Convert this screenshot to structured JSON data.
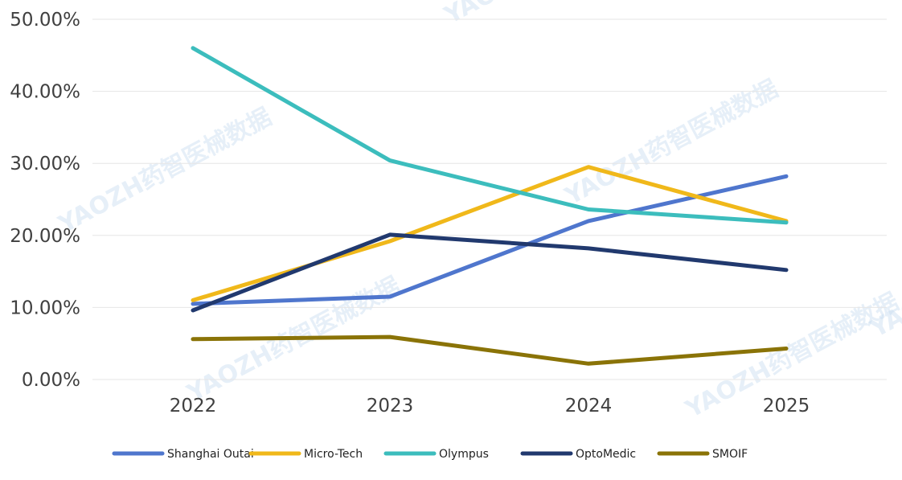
{
  "chart_data": {
    "type": "line",
    "title": "",
    "xlabel": "",
    "ylabel": "",
    "categories": [
      "2022",
      "2023",
      "2024",
      "2025"
    ],
    "ylim": [
      0,
      50
    ],
    "yticks": [
      0,
      10,
      20,
      30,
      40,
      50
    ],
    "ytick_labels": [
      "0.00%",
      "10.00%",
      "20.00%",
      "30.00%",
      "40.00%",
      "50.00%"
    ],
    "grid": true,
    "legend_position": "bottom",
    "series": [
      {
        "name": "Shanghai Outai",
        "color": "#4f76cd",
        "values": [
          10.5,
          11.5,
          22.0,
          28.2
        ]
      },
      {
        "name": "Micro-Tech",
        "color": "#f0b81a",
        "values": [
          11.0,
          19.2,
          29.5,
          22.0
        ]
      },
      {
        "name": "Olympus",
        "color": "#3cbdbd",
        "values": [
          46.0,
          30.4,
          23.6,
          21.8
        ]
      },
      {
        "name": "OptoMedic",
        "color": "#21396e",
        "values": [
          9.6,
          20.1,
          18.2,
          15.2
        ]
      },
      {
        "name": "SMOIF",
        "color": "#8a7307",
        "values": [
          5.6,
          5.9,
          2.2,
          4.3
        ]
      }
    ],
    "watermark": "YAOZH药智医械数据"
  }
}
